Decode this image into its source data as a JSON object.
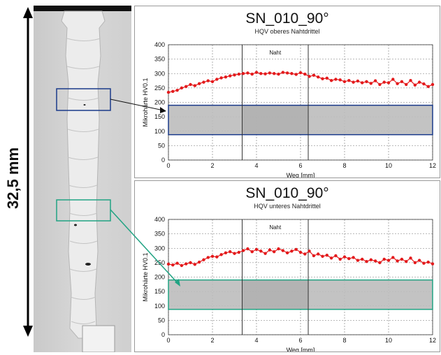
{
  "dimension_label": "32,5 mm",
  "colors": {
    "series": "#e31a1c",
    "box_top": "#1a3a8a",
    "box_bottom": "#21a383"
  },
  "chart_data": [
    {
      "type": "scatter",
      "title": "SN_010_90°",
      "subtitle": "HQV oberes Nahtdrittel",
      "xlabel": "Weg [mm]",
      "ylabel": "Mikrohärte HV0.1",
      "xlim": [
        0,
        12
      ],
      "ylim": [
        0,
        400
      ],
      "xticks": [
        0,
        2,
        4,
        6,
        8,
        10,
        12
      ],
      "yticks": [
        0,
        50,
        100,
        150,
        200,
        250,
        300,
        350,
        400
      ],
      "grid": true,
      "annotation": "Naht",
      "weld_bounds": [
        3.35,
        6.35
      ],
      "series": [
        {
          "x": [
            0.0,
            0.2,
            0.4,
            0.6,
            0.8,
            1.0,
            1.2,
            1.4,
            1.6,
            1.8,
            2.0,
            2.2,
            2.4,
            2.6,
            2.8,
            3.0,
            3.2,
            3.4,
            3.6,
            3.8,
            4.0,
            4.2,
            4.4,
            4.6,
            4.8,
            5.0,
            5.2,
            5.4,
            5.6,
            5.8,
            6.0,
            6.2,
            6.4,
            6.6,
            6.8,
            7.0,
            7.2,
            7.4,
            7.6,
            7.8,
            8.0,
            8.2,
            8.4,
            8.6,
            8.8,
            9.0,
            9.2,
            9.4,
            9.6,
            9.8,
            10.0,
            10.2,
            10.4,
            10.6,
            10.8,
            11.0,
            11.2,
            11.4,
            11.6,
            11.8,
            12.0
          ],
          "values": [
            235,
            238,
            242,
            250,
            255,
            262,
            258,
            265,
            270,
            275,
            272,
            280,
            285,
            288,
            292,
            295,
            298,
            300,
            302,
            298,
            304,
            300,
            299,
            302,
            300,
            298,
            304,
            302,
            300,
            297,
            303,
            298,
            290,
            294,
            288,
            282,
            284,
            276,
            280,
            278,
            272,
            276,
            270,
            274,
            268,
            272,
            266,
            275,
            262,
            270,
            268,
            280,
            265,
            272,
            262,
            276,
            260,
            270,
            264,
            255,
            262
          ]
        }
      ]
    },
    {
      "type": "scatter",
      "title": "SN_010_90°",
      "subtitle": "HQV unteres Nahtdrittel",
      "xlabel": "Weg [mm]",
      "ylabel": "Mikrohärte HV0.1",
      "xlim": [
        0,
        12
      ],
      "ylim": [
        0,
        400
      ],
      "xticks": [
        0,
        2,
        4,
        6,
        8,
        10,
        12
      ],
      "yticks": [
        0,
        50,
        100,
        150,
        200,
        250,
        300,
        350,
        400
      ],
      "grid": true,
      "annotation": "Naht",
      "weld_bounds": [
        3.35,
        6.35
      ],
      "series": [
        {
          "x": [
            0.0,
            0.2,
            0.4,
            0.6,
            0.8,
            1.0,
            1.2,
            1.4,
            1.6,
            1.8,
            2.0,
            2.2,
            2.4,
            2.6,
            2.8,
            3.0,
            3.2,
            3.4,
            3.6,
            3.8,
            4.0,
            4.2,
            4.4,
            4.6,
            4.8,
            5.0,
            5.2,
            5.4,
            5.6,
            5.8,
            6.0,
            6.2,
            6.4,
            6.6,
            6.8,
            7.0,
            7.2,
            7.4,
            7.6,
            7.8,
            8.0,
            8.2,
            8.4,
            8.6,
            8.8,
            9.0,
            9.2,
            9.4,
            9.6,
            9.8,
            10.0,
            10.2,
            10.4,
            10.6,
            10.8,
            11.0,
            11.2,
            11.4,
            11.6,
            11.8,
            12.0
          ],
          "values": [
            245,
            242,
            248,
            240,
            246,
            250,
            244,
            252,
            260,
            268,
            272,
            270,
            278,
            284,
            288,
            282,
            286,
            292,
            298,
            288,
            296,
            290,
            282,
            294,
            288,
            298,
            292,
            284,
            290,
            296,
            286,
            280,
            290,
            274,
            280,
            272,
            276,
            266,
            274,
            262,
            270,
            264,
            268,
            258,
            262,
            254,
            260,
            256,
            250,
            262,
            258,
            268,
            256,
            262,
            254,
            266,
            250,
            258,
            248,
            252,
            246
          ]
        }
      ]
    }
  ]
}
